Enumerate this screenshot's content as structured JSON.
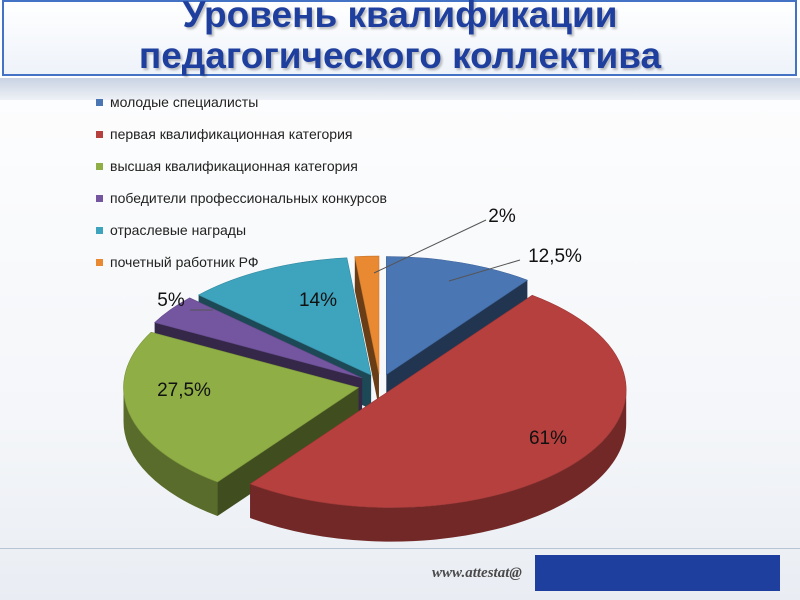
{
  "header": {
    "title_line1": "Уровень квалификации",
    "title_line2": "педагогического коллектива"
  },
  "footer": {
    "url_text": "www.attestat@"
  },
  "chart_data": {
    "type": "pie",
    "title": "",
    "categories": [
      "молодые специалисты",
      "первая квалификационная категория",
      "высшая квалификационная категория",
      "победители профессиональных конкурсов",
      "отраслевые награды",
      "почетный работник РФ"
    ],
    "values": [
      12.5,
      61,
      27.5,
      5,
      14,
      2
    ],
    "data_labels": [
      "12,5%",
      "61%",
      "27,5%",
      "5%",
      "14%",
      "2%"
    ],
    "colors": [
      "#4a76b4",
      "#b6403e",
      "#8fae45",
      "#7456a0",
      "#3ea3bd",
      "#e98a33"
    ],
    "legend_position": "top-left",
    "exploded": true,
    "style": "3d"
  }
}
